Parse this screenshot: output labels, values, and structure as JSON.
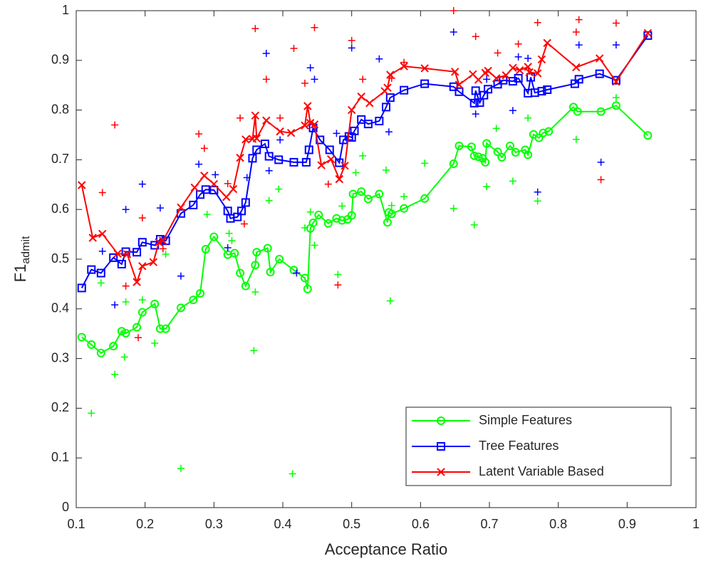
{
  "chart_data": {
    "type": "line",
    "xlabel": "Acceptance Ratio",
    "ylabel": "F1",
    "ylabel_subscript": "admit",
    "xlim": [
      0.1,
      1
    ],
    "ylim": [
      0,
      1
    ],
    "xticks": [
      0.1,
      0.2,
      0.3,
      0.4,
      0.5,
      0.6,
      0.7,
      0.8,
      0.9,
      1
    ],
    "yticks": [
      0,
      0.1,
      0.2,
      0.3,
      0.4,
      0.5,
      0.6,
      0.7,
      0.8,
      0.9,
      1
    ],
    "legend_position": "lower right",
    "series": [
      {
        "name": "Simple Features",
        "color": "#00ff00",
        "marker": "o",
        "x": [
          0.108,
          0.122,
          0.136,
          0.154,
          0.166,
          0.172,
          0.188,
          0.196,
          0.214,
          0.222,
          0.23,
          0.252,
          0.27,
          0.28,
          0.288,
          0.3,
          0.32,
          0.33,
          0.338,
          0.346,
          0.36,
          0.362,
          0.378,
          0.382,
          0.395,
          0.416,
          0.432,
          0.436,
          0.44,
          0.444,
          0.452,
          0.466,
          0.478,
          0.486,
          0.494,
          0.5,
          0.502,
          0.514,
          0.524,
          0.54,
          0.552,
          0.554,
          0.558,
          0.576,
          0.606,
          0.648,
          0.656,
          0.674,
          0.678,
          0.684,
          0.69,
          0.694,
          0.696,
          0.712,
          0.718,
          0.73,
          0.738,
          0.752,
          0.756,
          0.764,
          0.772,
          0.778,
          0.786,
          0.822,
          0.828,
          0.862,
          0.884,
          0.93
        ],
        "values": [
          0.343,
          0.328,
          0.311,
          0.325,
          0.355,
          0.351,
          0.363,
          0.393,
          0.41,
          0.36,
          0.36,
          0.402,
          0.418,
          0.431,
          0.52,
          0.545,
          0.509,
          0.512,
          0.472,
          0.446,
          0.488,
          0.514,
          0.522,
          0.474,
          0.5,
          0.478,
          0.462,
          0.44,
          0.562,
          0.573,
          0.589,
          0.572,
          0.582,
          0.578,
          0.58,
          0.588,
          0.631,
          0.636,
          0.621,
          0.631,
          0.574,
          0.594,
          0.591,
          0.602,
          0.622,
          0.692,
          0.728,
          0.726,
          0.708,
          0.706,
          0.703,
          0.695,
          0.733,
          0.716,
          0.705,
          0.728,
          0.715,
          0.72,
          0.71,
          0.751,
          0.744,
          0.754,
          0.757,
          0.806,
          0.797,
          0.797,
          0.809,
          0.749
        ]
      },
      {
        "name": "Tree Features",
        "color": "#0000ff",
        "marker": "s",
        "x": [
          0.108,
          0.122,
          0.136,
          0.154,
          0.166,
          0.172,
          0.188,
          0.196,
          0.214,
          0.222,
          0.23,
          0.252,
          0.27,
          0.28,
          0.288,
          0.3,
          0.32,
          0.324,
          0.334,
          0.34,
          0.346,
          0.356,
          0.362,
          0.374,
          0.38,
          0.394,
          0.416,
          0.434,
          0.438,
          0.444,
          0.454,
          0.468,
          0.482,
          0.488,
          0.496,
          0.5,
          0.504,
          0.514,
          0.524,
          0.54,
          0.55,
          0.556,
          0.576,
          0.606,
          0.648,
          0.656,
          0.678,
          0.68,
          0.686,
          0.692,
          0.698,
          0.712,
          0.72,
          0.734,
          0.742,
          0.756,
          0.76,
          0.766,
          0.776,
          0.784,
          0.824,
          0.83,
          0.86,
          0.884,
          0.93
        ],
        "values": [
          0.442,
          0.479,
          0.472,
          0.503,
          0.49,
          0.515,
          0.514,
          0.534,
          0.528,
          0.54,
          0.537,
          0.592,
          0.609,
          0.63,
          0.64,
          0.639,
          0.597,
          0.582,
          0.585,
          0.597,
          0.614,
          0.703,
          0.72,
          0.732,
          0.707,
          0.7,
          0.695,
          0.695,
          0.72,
          0.764,
          0.74,
          0.72,
          0.694,
          0.74,
          0.747,
          0.745,
          0.758,
          0.781,
          0.772,
          0.778,
          0.806,
          0.825,
          0.84,
          0.853,
          0.847,
          0.837,
          0.814,
          0.839,
          0.815,
          0.83,
          0.842,
          0.852,
          0.86,
          0.858,
          0.864,
          0.834,
          0.866,
          0.835,
          0.838,
          0.841,
          0.853,
          0.862,
          0.873,
          0.86,
          0.95
        ]
      },
      {
        "name": "Latent Variable Based",
        "color": "#ff0000",
        "marker": "x",
        "x": [
          0.108,
          0.124,
          0.138,
          0.16,
          0.174,
          0.188,
          0.196,
          0.212,
          0.22,
          0.226,
          0.252,
          0.272,
          0.286,
          0.3,
          0.318,
          0.328,
          0.338,
          0.346,
          0.356,
          0.36,
          0.362,
          0.376,
          0.396,
          0.412,
          0.432,
          0.436,
          0.44,
          0.446,
          0.456,
          0.47,
          0.482,
          0.49,
          0.5,
          0.514,
          0.526,
          0.548,
          0.552,
          0.556,
          0.576,
          0.606,
          0.65,
          0.656,
          0.676,
          0.684,
          0.694,
          0.698,
          0.71,
          0.724,
          0.734,
          0.744,
          0.756,
          0.758,
          0.77,
          0.776,
          0.784,
          0.826,
          0.86,
          0.884,
          0.93
        ],
        "values": [
          0.649,
          0.543,
          0.551,
          0.511,
          0.51,
          0.454,
          0.486,
          0.494,
          0.534,
          0.537,
          0.604,
          0.644,
          0.668,
          0.651,
          0.625,
          0.641,
          0.704,
          0.741,
          0.742,
          0.789,
          0.743,
          0.779,
          0.757,
          0.754,
          0.769,
          0.808,
          0.774,
          0.771,
          0.689,
          0.701,
          0.661,
          0.688,
          0.8,
          0.827,
          0.814,
          0.838,
          0.845,
          0.871,
          0.888,
          0.884,
          0.877,
          0.851,
          0.872,
          0.861,
          0.875,
          0.879,
          0.864,
          0.87,
          0.885,
          0.88,
          0.887,
          0.876,
          0.874,
          0.902,
          0.935,
          0.886,
          0.904,
          0.857,
          0.955
        ]
      },
      {
        "color": "#00ff00",
        "marker": "+",
        "line": false,
        "x": [
          0.136,
          0.122,
          0.156,
          0.17,
          0.172,
          0.196,
          0.214,
          0.23,
          0.252,
          0.29,
          0.322,
          0.326,
          0.358,
          0.36,
          0.38,
          0.394,
          0.414,
          0.432,
          0.44,
          0.446,
          0.48,
          0.486,
          0.506,
          0.516,
          0.55,
          0.556,
          0.558,
          0.576,
          0.606,
          0.648,
          0.678,
          0.696,
          0.71,
          0.734,
          0.756,
          0.77,
          0.826,
          0.884
        ],
        "values": [
          0.452,
          0.19,
          0.268,
          0.303,
          0.414,
          0.418,
          0.331,
          0.51,
          0.079,
          0.59,
          0.552,
          0.537,
          0.316,
          0.434,
          0.618,
          0.641,
          0.068,
          0.563,
          0.595,
          0.528,
          0.469,
          0.607,
          0.674,
          0.708,
          0.679,
          0.416,
          0.608,
          0.626,
          0.693,
          0.602,
          0.569,
          0.646,
          0.763,
          0.657,
          0.784,
          0.617,
          0.741,
          0.825
        ]
      },
      {
        "color": "#0000ff",
        "marker": "+",
        "line": false,
        "x": [
          0.138,
          0.156,
          0.172,
          0.196,
          0.222,
          0.252,
          0.278,
          0.302,
          0.32,
          0.348,
          0.376,
          0.38,
          0.396,
          0.42,
          0.44,
          0.446,
          0.478,
          0.5,
          0.54,
          0.554,
          0.648,
          0.68,
          0.696,
          0.734,
          0.742,
          0.756,
          0.77,
          0.83,
          0.862,
          0.884
        ],
        "values": [
          0.516,
          0.408,
          0.6,
          0.651,
          0.603,
          0.466,
          0.691,
          0.67,
          0.523,
          0.664,
          0.914,
          0.678,
          0.74,
          0.472,
          0.885,
          0.862,
          0.753,
          0.925,
          0.903,
          0.756,
          0.957,
          0.792,
          0.862,
          0.799,
          0.907,
          0.904,
          0.635,
          0.931,
          0.695,
          0.931
        ]
      },
      {
        "color": "#ff0000",
        "marker": "+",
        "line": false,
        "x": [
          0.138,
          0.156,
          0.172,
          0.19,
          0.196,
          0.226,
          0.278,
          0.286,
          0.32,
          0.338,
          0.344,
          0.36,
          0.376,
          0.396,
          0.416,
          0.432,
          0.446,
          0.466,
          0.48,
          0.5,
          0.516,
          0.558,
          0.576,
          0.648,
          0.68,
          0.696,
          0.712,
          0.742,
          0.77,
          0.826,
          0.83,
          0.862,
          0.884
        ],
        "values": [
          0.634,
          0.77,
          0.446,
          0.342,
          0.583,
          0.521,
          0.752,
          0.723,
          0.652,
          0.784,
          0.571,
          0.964,
          0.862,
          0.784,
          0.924,
          0.854,
          0.966,
          0.651,
          0.448,
          0.94,
          0.862,
          0.864,
          0.896,
          1.0,
          0.948,
          0.876,
          0.915,
          0.933,
          0.976,
          0.957,
          0.982,
          0.66,
          0.975
        ]
      }
    ]
  }
}
